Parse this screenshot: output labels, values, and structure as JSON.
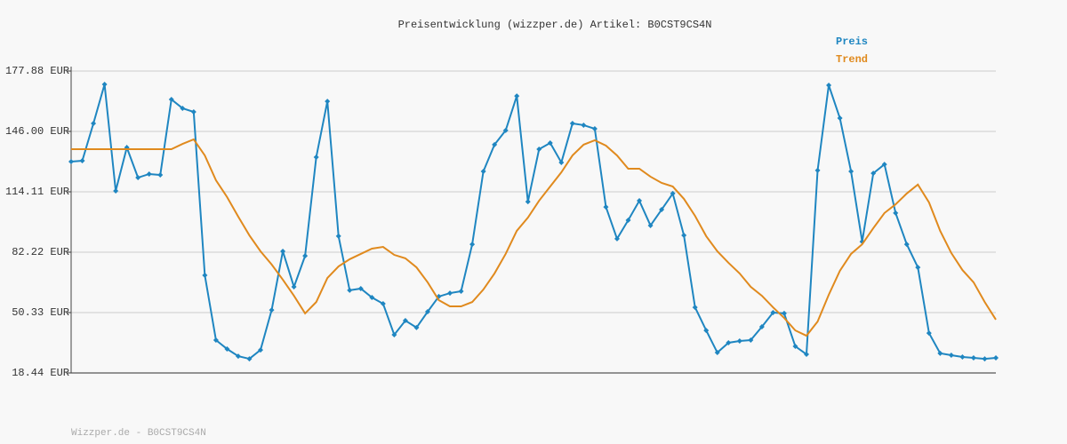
{
  "chart_data": {
    "type": "line",
    "title": "Preisentwicklung (wizzper.de) Artikel: B0CST9CS4N",
    "footer": "Wizzper.de - B0CST9CS4N",
    "ylim": [
      18.44,
      177.88
    ],
    "yticks": [
      {
        "value": 18.44,
        "label": "18.44 EUR"
      },
      {
        "value": 50.33,
        "label": "50.33 EUR"
      },
      {
        "value": 82.22,
        "label": "82.22 EUR"
      },
      {
        "value": 114.11,
        "label": "114.11 EUR"
      },
      {
        "value": 146.0,
        "label": "146.00 EUR"
      },
      {
        "value": 177.88,
        "label": "177.88 EUR"
      }
    ],
    "grid": true,
    "legend": "top-right",
    "series": [
      {
        "name": "Preis",
        "color": "#1f86c1",
        "markers": true,
        "values": [
          130.05,
          130.5,
          150.2,
          170.85,
          114.6,
          137.5,
          121.6,
          123.5,
          123.0,
          162.9,
          158.2,
          156.3,
          70.0,
          35.8,
          31.1,
          27.3,
          25.9,
          30.6,
          51.7,
          82.7,
          63.9,
          80.3,
          132.4,
          161.9,
          90.7,
          62.1,
          63.0,
          58.3,
          55.0,
          38.6,
          46.1,
          42.4,
          50.8,
          58.8,
          60.6,
          61.6,
          86.4,
          124.9,
          139.0,
          146.5,
          164.7,
          108.9,
          136.6,
          139.9,
          129.6,
          150.2,
          149.3,
          147.4,
          106.1,
          89.3,
          99.1,
          109.4,
          96.3,
          104.7,
          113.2,
          91.1,
          53.1,
          40.9,
          29.2,
          34.4,
          35.3,
          35.8,
          42.8,
          50.3,
          49.9,
          32.5,
          28.3,
          125.4,
          170.4,
          153.0,
          124.9,
          87.8,
          123.9,
          128.6,
          102.9,
          86.4,
          74.2,
          39.5,
          28.8,
          27.8,
          26.9,
          26.4,
          25.9,
          26.4
        ]
      },
      {
        "name": "Trend",
        "color": "#e08a1e",
        "markers": false,
        "values": [
          136.6,
          136.6,
          136.6,
          136.6,
          136.6,
          136.6,
          136.6,
          136.6,
          136.6,
          136.6,
          139.4,
          141.8,
          133.3,
          120.2,
          111.3,
          101.0,
          91.1,
          82.7,
          75.7,
          67.7,
          59.2,
          49.9,
          55.9,
          68.6,
          74.7,
          78.5,
          81.3,
          84.1,
          85.0,
          80.8,
          79.0,
          74.2,
          66.3,
          56.9,
          53.6,
          53.6,
          55.9,
          62.5,
          71.0,
          81.3,
          93.5,
          100.5,
          109.4,
          116.9,
          124.4,
          133.3,
          139.0,
          141.3,
          138.5,
          133.3,
          126.3,
          126.3,
          122.1,
          118.8,
          116.9,
          110.4,
          101.4,
          90.7,
          82.7,
          76.6,
          71.0,
          63.9,
          59.2,
          53.1,
          47.5,
          40.9,
          38.1,
          45.6,
          59.7,
          72.4,
          81.3,
          86.4,
          94.9,
          102.9,
          107.5,
          113.2,
          117.9,
          108.5,
          93.5,
          81.8,
          72.8,
          66.3,
          55.9,
          46.6
        ]
      }
    ]
  }
}
